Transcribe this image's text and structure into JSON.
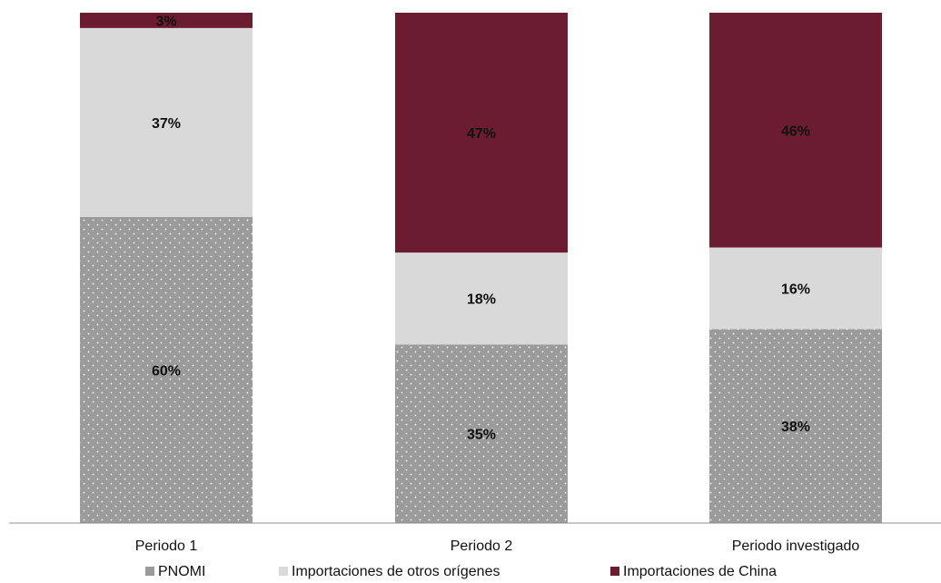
{
  "chart_data": {
    "type": "bar",
    "stacked": true,
    "percent_stacked": true,
    "title": "",
    "xlabel": "",
    "ylabel": "",
    "ylim": [
      0,
      100
    ],
    "grid": false,
    "legend_position": "bottom",
    "categories": [
      "Periodo 1",
      "Periodo 2",
      "Periodo investigado"
    ],
    "series": [
      {
        "name": "PNOMI",
        "values": [
          60,
          35,
          38
        ],
        "labels": [
          "60%",
          "35%",
          "38%"
        ],
        "color": "#9b9b9b",
        "pattern": "dotted"
      },
      {
        "name": "Importaciones de otros orígenes",
        "values": [
          37,
          18,
          16
        ],
        "labels": [
          "37%",
          "18%",
          "16%"
        ],
        "color": "#d9d9d9"
      },
      {
        "name": "Importaciones de China",
        "values": [
          3,
          47,
          46
        ],
        "labels": [
          "3%",
          "47%",
          "46%"
        ],
        "color": "#6b1c31"
      }
    ]
  }
}
